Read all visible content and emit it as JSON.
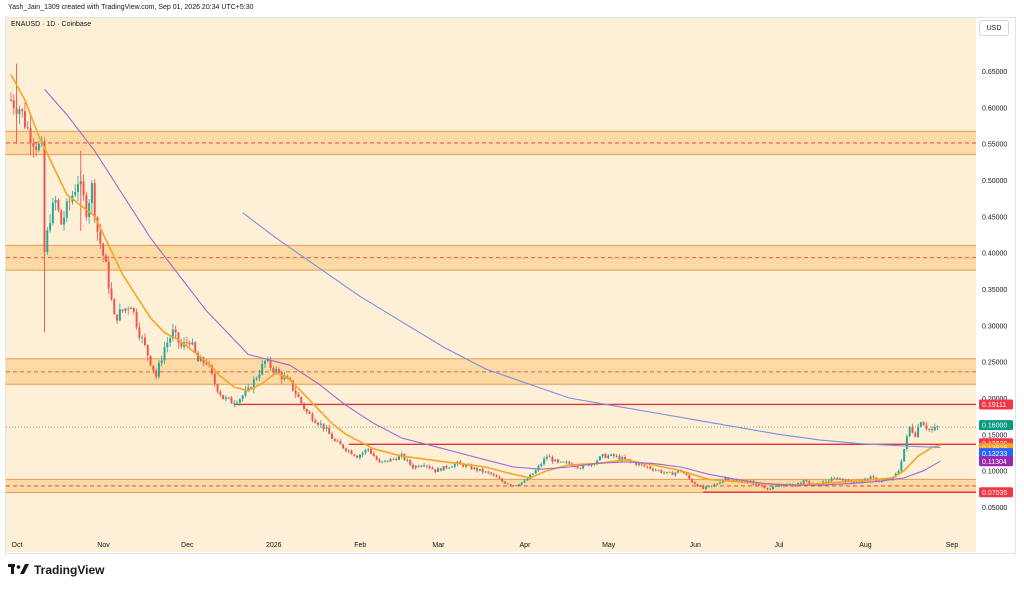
{
  "header": {
    "caption": "Yash_Jain_1309 created with TradingView.com, Sep 01, 2026 20:34 UTC+5:30",
    "symbol": "ENAUSD · 1D · Coinbase",
    "currency": "USD"
  },
  "brand": {
    "name": "TradingView",
    "logo_icon": "tradingview-logo-icon"
  },
  "colors": {
    "background": "#fdf0d6",
    "up": "#26a69a",
    "down": "#ef5350",
    "zone_fill": "#f9c97a",
    "zone_line": "#e69b5a",
    "level_line": "#e0323c",
    "ma_fast": "#f5a623",
    "ma_mid": "#9a6bd6",
    "ma_slow": "#7b8fe6"
  },
  "chart_data": {
    "type": "candlestick",
    "interval": "1D",
    "exchange": "Coinbase",
    "symbol": "ENAUSD",
    "ylim": [
      0.03,
      0.72
    ],
    "y_ticks": [
      0.05,
      0.1,
      0.15,
      0.2,
      0.25,
      0.3,
      0.35,
      0.4,
      0.45,
      0.5,
      0.55,
      0.6,
      0.65
    ],
    "y_tick_labels": [
      "0.05000",
      "0.10000",
      "0.15000",
      "0.20000",
      "0.25000",
      "0.30000",
      "0.35000",
      "0.40000",
      "0.45000",
      "0.50000",
      "0.55000",
      "0.60000",
      "0.65000"
    ],
    "x_range_days": [
      0,
      335
    ],
    "x_ticks": [
      {
        "day": 0,
        "label": "Oct"
      },
      {
        "day": 31,
        "label": "Nov"
      },
      {
        "day": 61,
        "label": "Dec"
      },
      {
        "day": 92,
        "label": "2026"
      },
      {
        "day": 123,
        "label": "Feb"
      },
      {
        "day": 151,
        "label": "Mar"
      },
      {
        "day": 182,
        "label": "Apr"
      },
      {
        "day": 212,
        "label": "May"
      },
      {
        "day": 243,
        "label": "Jun"
      },
      {
        "day": 273,
        "label": "Jul"
      },
      {
        "day": 304,
        "label": "Aug"
      },
      {
        "day": 335,
        "label": "Sep"
      }
    ],
    "zones": [
      {
        "low": 0.535,
        "high": 0.567,
        "mid": 0.551
      },
      {
        "low": 0.376,
        "high": 0.41,
        "mid": 0.393
      },
      {
        "low": 0.219,
        "high": 0.254,
        "mid": 0.236
      },
      {
        "low": 0.07,
        "high": 0.088,
        "mid": 0.079
      }
    ],
    "horizontal_levels": [
      {
        "value": 0.19111,
        "from_day": 80
      },
      {
        "value": 0.13628,
        "from_day": 121
      },
      {
        "value": 0.07035,
        "from_day": 248
      }
    ],
    "last_price": 0.16,
    "price_labels": [
      {
        "value": 0.19111,
        "text": "0.19111",
        "color": "#f23645"
      },
      {
        "value": 0.16,
        "text": "0.16000",
        "color": "#089981"
      },
      {
        "value": 0.13628,
        "text": "0.13628",
        "color": "#f23645"
      },
      {
        "value": 0.13528,
        "text": "0.13528",
        "color": "#f7a21b"
      },
      {
        "value": 0.13233,
        "text": "0.13233",
        "color": "#2962ff"
      },
      {
        "value": 0.11304,
        "text": "0.11304",
        "color": "#9c27b0"
      },
      {
        "value": 0.07035,
        "text": "0.07035",
        "color": "#f23645"
      }
    ],
    "close_path": [
      [
        0,
        0.61
      ],
      [
        3,
        0.6
      ],
      [
        6,
        0.57
      ],
      [
        9,
        0.55
      ],
      [
        11,
        0.54
      ],
      [
        12,
        0.4
      ],
      [
        14,
        0.45
      ],
      [
        16,
        0.47
      ],
      [
        18,
        0.44
      ],
      [
        21,
        0.47
      ],
      [
        24,
        0.5
      ],
      [
        27,
        0.46
      ],
      [
        29,
        0.49
      ],
      [
        31,
        0.43
      ],
      [
        34,
        0.38
      ],
      [
        37,
        0.31
      ],
      [
        40,
        0.32
      ],
      [
        43,
        0.33
      ],
      [
        46,
        0.29
      ],
      [
        49,
        0.26
      ],
      [
        52,
        0.23
      ],
      [
        55,
        0.27
      ],
      [
        58,
        0.29
      ],
      [
        61,
        0.27
      ],
      [
        64,
        0.28
      ],
      [
        67,
        0.25
      ],
      [
        70,
        0.25
      ],
      [
        73,
        0.22
      ],
      [
        76,
        0.2
      ],
      [
        79,
        0.195
      ],
      [
        82,
        0.2
      ],
      [
        85,
        0.21
      ],
      [
        88,
        0.23
      ],
      [
        91,
        0.25
      ],
      [
        94,
        0.24
      ],
      [
        97,
        0.23
      ],
      [
        100,
        0.22
      ],
      [
        103,
        0.2
      ],
      [
        106,
        0.18
      ],
      [
        109,
        0.17
      ],
      [
        112,
        0.16
      ],
      [
        116,
        0.14
      ],
      [
        120,
        0.13
      ],
      [
        124,
        0.12
      ],
      [
        128,
        0.13
      ],
      [
        132,
        0.11
      ],
      [
        136,
        0.115
      ],
      [
        140,
        0.12
      ],
      [
        144,
        0.105
      ],
      [
        148,
        0.11
      ],
      [
        152,
        0.1
      ],
      [
        156,
        0.105
      ],
      [
        160,
        0.11
      ],
      [
        164,
        0.105
      ],
      [
        168,
        0.1
      ],
      [
        172,
        0.095
      ],
      [
        176,
        0.085
      ],
      [
        180,
        0.08
      ],
      [
        184,
        0.085
      ],
      [
        188,
        0.1
      ],
      [
        192,
        0.12
      ],
      [
        196,
        0.11
      ],
      [
        200,
        0.11
      ],
      [
        204,
        0.105
      ],
      [
        208,
        0.11
      ],
      [
        212,
        0.12
      ],
      [
        216,
        0.12
      ],
      [
        220,
        0.115
      ],
      [
        224,
        0.11
      ],
      [
        228,
        0.105
      ],
      [
        232,
        0.1
      ],
      [
        236,
        0.095
      ],
      [
        240,
        0.1
      ],
      [
        244,
        0.085
      ],
      [
        248,
        0.075
      ],
      [
        252,
        0.08
      ],
      [
        256,
        0.09
      ],
      [
        260,
        0.085
      ],
      [
        264,
        0.085
      ],
      [
        268,
        0.08
      ],
      [
        272,
        0.075
      ],
      [
        276,
        0.08
      ],
      [
        280,
        0.08
      ],
      [
        284,
        0.085
      ],
      [
        288,
        0.08
      ],
      [
        292,
        0.085
      ],
      [
        296,
        0.09
      ],
      [
        300,
        0.085
      ],
      [
        304,
        0.085
      ],
      [
        308,
        0.09
      ],
      [
        312,
        0.085
      ],
      [
        316,
        0.09
      ],
      [
        318,
        0.1
      ],
      [
        320,
        0.13
      ],
      [
        322,
        0.16
      ],
      [
        324,
        0.15
      ],
      [
        326,
        0.17
      ],
      [
        328,
        0.16
      ],
      [
        330,
        0.155
      ],
      [
        332,
        0.16
      ]
    ],
    "moving_averages": [
      {
        "key": "ma_fast",
        "path": [
          [
            0,
            0.645
          ],
          [
            5,
            0.61
          ],
          [
            10,
            0.56
          ],
          [
            15,
            0.52
          ],
          [
            20,
            0.48
          ],
          [
            25,
            0.465
          ],
          [
            30,
            0.45
          ],
          [
            35,
            0.41
          ],
          [
            40,
            0.37
          ],
          [
            45,
            0.34
          ],
          [
            50,
            0.31
          ],
          [
            55,
            0.29
          ],
          [
            60,
            0.28
          ],
          [
            65,
            0.265
          ],
          [
            70,
            0.25
          ],
          [
            75,
            0.23
          ],
          [
            80,
            0.215
          ],
          [
            85,
            0.21
          ],
          [
            90,
            0.22
          ],
          [
            95,
            0.235
          ],
          [
            100,
            0.225
          ],
          [
            105,
            0.205
          ],
          [
            110,
            0.185
          ],
          [
            115,
            0.165
          ],
          [
            120,
            0.15
          ],
          [
            125,
            0.14
          ],
          [
            130,
            0.13
          ],
          [
            140,
            0.12
          ],
          [
            150,
            0.115
          ],
          [
            160,
            0.11
          ],
          [
            170,
            0.105
          ],
          [
            180,
            0.095
          ],
          [
            186,
            0.09
          ],
          [
            192,
            0.1
          ],
          [
            200,
            0.108
          ],
          [
            210,
            0.11
          ],
          [
            220,
            0.115
          ],
          [
            230,
            0.108
          ],
          [
            240,
            0.1
          ],
          [
            250,
            0.088
          ],
          [
            260,
            0.085
          ],
          [
            270,
            0.082
          ],
          [
            280,
            0.08
          ],
          [
            290,
            0.082
          ],
          [
            300,
            0.085
          ],
          [
            310,
            0.088
          ],
          [
            316,
            0.09
          ],
          [
            320,
            0.1
          ],
          [
            325,
            0.12
          ],
          [
            330,
            0.132
          ],
          [
            333,
            0.135
          ]
        ]
      },
      {
        "key": "ma_mid",
        "path": [
          [
            12,
            0.625
          ],
          [
            20,
            0.59
          ],
          [
            30,
            0.54
          ],
          [
            40,
            0.48
          ],
          [
            50,
            0.42
          ],
          [
            60,
            0.37
          ],
          [
            70,
            0.32
          ],
          [
            80,
            0.28
          ],
          [
            85,
            0.26
          ],
          [
            90,
            0.255
          ],
          [
            95,
            0.25
          ],
          [
            100,
            0.245
          ],
          [
            110,
            0.22
          ],
          [
            120,
            0.19
          ],
          [
            130,
            0.165
          ],
          [
            140,
            0.145
          ],
          [
            150,
            0.135
          ],
          [
            160,
            0.125
          ],
          [
            170,
            0.115
          ],
          [
            180,
            0.105
          ],
          [
            190,
            0.102
          ],
          [
            200,
            0.105
          ],
          [
            210,
            0.11
          ],
          [
            220,
            0.112
          ],
          [
            230,
            0.11
          ],
          [
            240,
            0.105
          ],
          [
            250,
            0.095
          ],
          [
            260,
            0.088
          ],
          [
            270,
            0.082
          ],
          [
            280,
            0.08
          ],
          [
            290,
            0.08
          ],
          [
            300,
            0.082
          ],
          [
            310,
            0.085
          ],
          [
            320,
            0.09
          ],
          [
            327,
            0.1
          ],
          [
            333,
            0.113
          ]
        ]
      },
      {
        "key": "ma_slow",
        "path": [
          [
            83,
            0.455
          ],
          [
            95,
            0.42
          ],
          [
            110,
            0.38
          ],
          [
            125,
            0.34
          ],
          [
            140,
            0.305
          ],
          [
            155,
            0.27
          ],
          [
            170,
            0.24
          ],
          [
            185,
            0.22
          ],
          [
            200,
            0.2
          ],
          [
            215,
            0.19
          ],
          [
            230,
            0.18
          ],
          [
            245,
            0.17
          ],
          [
            260,
            0.16
          ],
          [
            275,
            0.15
          ],
          [
            290,
            0.142
          ],
          [
            305,
            0.137
          ],
          [
            320,
            0.134
          ],
          [
            333,
            0.132
          ]
        ]
      }
    ]
  }
}
